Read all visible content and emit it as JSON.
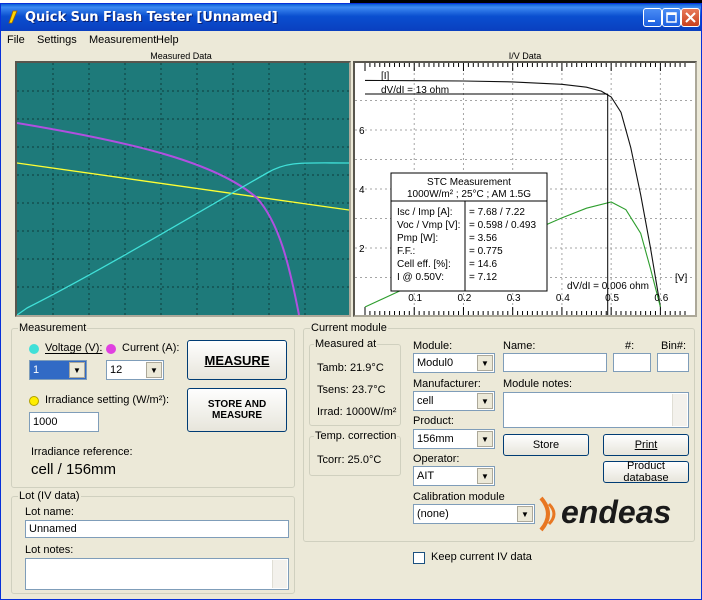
{
  "window": {
    "title": "Quick Sun Flash Tester [Unnamed]"
  },
  "menu": [
    "File",
    "Settings",
    "Measurement",
    "Help"
  ],
  "measured_chart": {
    "title": "Measured Data",
    "colors": {
      "background": "#1e7a7a",
      "voltage": "#ffff33",
      "current": "#b050e0",
      "irradiance": "#40e0d8"
    }
  },
  "iv_chart": {
    "title": "I/V Data",
    "y_axis_label": "[I]",
    "x_axis_label": "[V]",
    "y_ticks": [
      "6",
      "4",
      "2"
    ],
    "x_ticks": [
      "0.1",
      "0.2",
      "0.3",
      "0.4",
      "0.5",
      "0.6"
    ],
    "annotation_top": "dV/dI = 13 ohm",
    "annotation_bottom": "dV/dI = 0.006 ohm",
    "stc": {
      "title": "STC Measurement",
      "conditions": "1000W/m² ; 25°C ; AM 1.5G",
      "rows": [
        {
          "label": "Isc / Imp [A]:",
          "value": "= 7.68 / 7.22"
        },
        {
          "label": "Voc / Vmp [V]:",
          "value": "= 0.598 / 0.493"
        },
        {
          "label": "Pmp [W]:",
          "value": "= 3.56"
        },
        {
          "label": "F.F.:",
          "value": "= 0.775"
        },
        {
          "label": "Cell eff. [%]:",
          "value": "= 14.6"
        },
        {
          "label": "I @ 0.50V:",
          "value": "= 7.12"
        }
      ]
    }
  },
  "chart_data": {
    "type": "line",
    "title": "I/V Data",
    "xlabel": "[V]",
    "ylabel": "[I]",
    "xlim": [
      0,
      0.65
    ],
    "ylim": [
      0,
      8
    ],
    "series": [
      {
        "name": "",
        "x": [
          0.0,
          0.1,
          0.2,
          0.3,
          0.4,
          0.45,
          0.48,
          0.5,
          0.52,
          0.54,
          0.56,
          0.58,
          0.6
        ],
        "values": [
          7.68,
          7.67,
          7.66,
          7.63,
          7.55,
          7.45,
          7.32,
          7.12,
          6.6,
          5.4,
          3.8,
          2.0,
          0.0
        ]
      },
      {
        "name": "",
        "x": [
          0.0,
          0.1,
          0.2,
          0.3,
          0.4,
          0.45,
          0.5,
          0.53,
          0.56,
          0.58,
          0.6
        ],
        "values": [
          0.0,
          0.77,
          1.53,
          2.29,
          3.02,
          3.35,
          3.56,
          3.3,
          2.5,
          1.3,
          0.0
        ]
      }
    ]
  },
  "measurement": {
    "group_label": "Measurement",
    "voltage_label": "Voltage (V):",
    "voltage_value": "1",
    "current_label": "Current (A):",
    "current_value": "12",
    "irradiance_label": "Irradiance setting (W/m²):",
    "irradiance_value": "1000",
    "irradiance_reference_label": "Irradiance reference:",
    "irradiance_reference_value": "cell / 156mm",
    "measure_button": "MEASURE",
    "store_measure_button": "STORE AND MEASURE",
    "colors": {
      "voltage_dot": "#40e0d8",
      "current_dot": "#e040e0",
      "irradiance_dot": "#ffee00"
    }
  },
  "lot": {
    "group_label": "Lot (IV data)",
    "name_label": "Lot name:",
    "name_value": "Unnamed",
    "notes_label": "Lot notes:",
    "notes_value": ""
  },
  "current_module": {
    "group_label": "Current module",
    "measured_at_label": "Measured at",
    "tamb": "Tamb:  21.9°C",
    "tsens": "Tsens:  23.7°C",
    "irrad": "Irrad:   1000W/m²",
    "temp_correction_label": "Temp. correction",
    "tcorr": "Tcorr:  25.0°C",
    "module_label": "Module:",
    "module_value": "Modul0",
    "manufacturer_label": "Manufacturer:",
    "manufacturer_value": "cell",
    "product_label": "Product:",
    "product_value": "156mm",
    "operator_label": "Operator:",
    "operator_value": "AIT",
    "calibration_label": "Calibration module",
    "calibration_value": "(none)",
    "name_label": "Name:",
    "name_value": "",
    "number_label": "#:",
    "number_value": "",
    "bin_label": "Bin#:",
    "bin_value": "",
    "notes_label": "Module notes:",
    "notes_value": "",
    "store_button": "Store",
    "print_button": "Print",
    "product_db_button": "Product database",
    "keep_iv_label": "Keep current IV data",
    "brand": "endeas",
    "brand_color": "#e87722"
  }
}
